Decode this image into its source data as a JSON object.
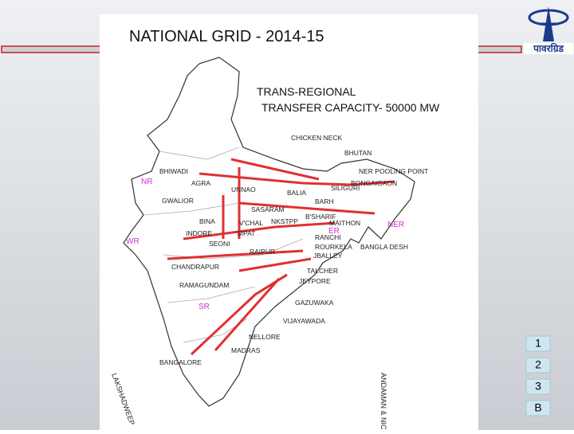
{
  "header": {
    "title": "NATIONAL GRID - 2014-15",
    "logo_text": "पावरग्रिड"
  },
  "subtitle": {
    "line1": "TRANS-REGIONAL",
    "line2": "TRANSFER CAPACITY- 50000 MW"
  },
  "map": {
    "regions": [
      "NR",
      "WR",
      "ER",
      "NER",
      "SR"
    ],
    "places": [
      "CHICKEN NECK",
      "BHUTAN",
      "NER POOLING POINT",
      "BHIWADI",
      "AGRA",
      "UNNAO",
      "SILIGURI",
      "BONGAIGAON",
      "BALIA",
      "BARH",
      "GWALIOR",
      "SASARAM",
      "B'SHARIF",
      "MAITHON",
      "BINA",
      "V'CHAL",
      "NKSTPP",
      "INDORE",
      "SIPAT",
      "RANCHI",
      "SEONI",
      "ROURKELA",
      "BANGLA DESH",
      "RAIPUR",
      "JBALLEY",
      "CHANDRAPUR",
      "TALCHER",
      "JEYPORE",
      "RAMAGUNDAM",
      "GAZUWAKA",
      "VIJAYAWADA",
      "NELLORE",
      "MADRAS",
      "BANGALORE",
      "LAKSHADWEEP",
      "ANDAMAN & NICOBAR"
    ]
  },
  "nav": [
    "1",
    "2",
    "3",
    "B"
  ]
}
